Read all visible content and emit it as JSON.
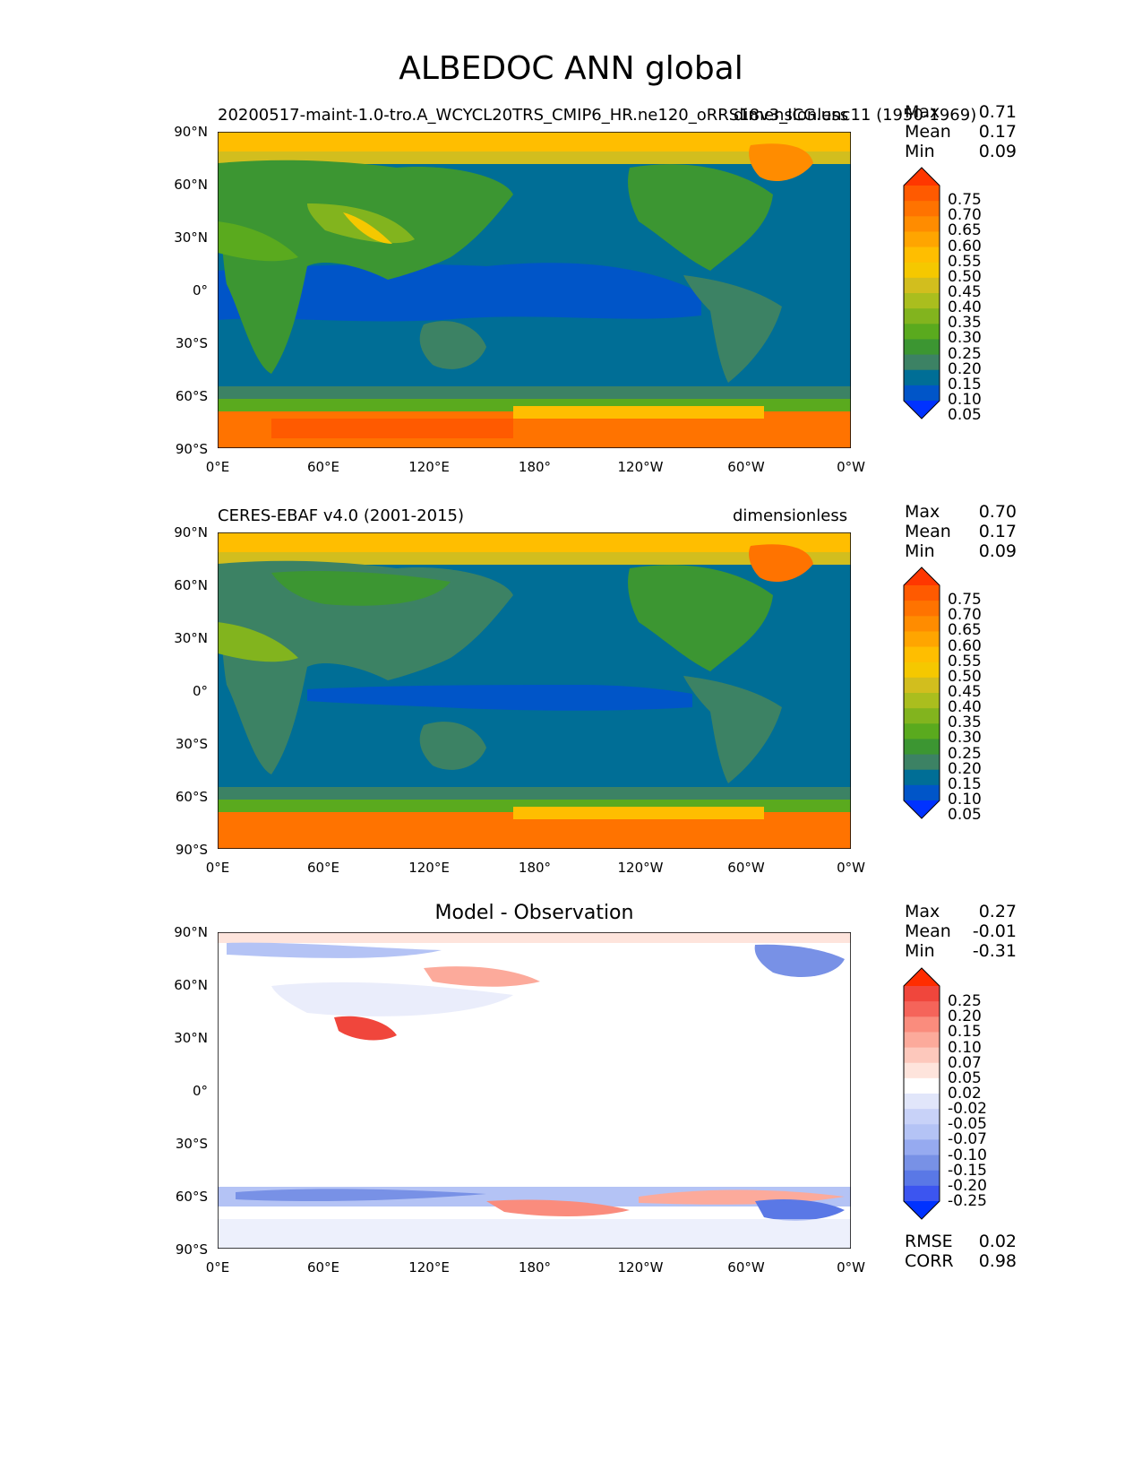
{
  "title": "ALBEDOC ANN global",
  "panels": [
    {
      "id": "model",
      "left_title": "20200517-maint-1.0-tro.A_WCYCL20TRS_CMIP6_HR.ne120_oRRS18v3_ICG.unc11 (1950-1969)",
      "right_title": "dimensionless",
      "stats": {
        "max_label": "Max",
        "max": "0.71",
        "mean_label": "Mean",
        "mean": "0.17",
        "min_label": "Min",
        "min": "0.09"
      }
    },
    {
      "id": "obs",
      "left_title": "CERES-EBAF v4.0 (2001-2015)",
      "right_title": "dimensionless",
      "stats": {
        "max_label": "Max",
        "max": "0.70",
        "mean_label": "Mean",
        "mean": "0.17",
        "min_label": "Min",
        "min": "0.09"
      }
    },
    {
      "id": "diff",
      "center_title": "Model - Observation",
      "stats": {
        "max_label": "Max",
        "max": "0.27",
        "mean_label": "Mean",
        "mean": "-0.01",
        "min_label": "Min",
        "min": "-0.31"
      },
      "metrics": {
        "rmse_label": "RMSE",
        "rmse": "0.02",
        "corr_label": "CORR",
        "corr": "0.98"
      }
    }
  ],
  "lat_labels": [
    "90°N",
    "60°N",
    "30°N",
    "0°",
    "30°S",
    "60°S",
    "90°S"
  ],
  "lon_labels": [
    "0°E",
    "60°E",
    "120°E",
    "180°",
    "120°W",
    "60°W",
    "0°W"
  ],
  "colorbar_main": {
    "labels": [
      "0.75",
      "0.70",
      "0.65",
      "0.60",
      "0.55",
      "0.50",
      "0.45",
      "0.40",
      "0.35",
      "0.30",
      "0.25",
      "0.20",
      "0.15",
      "0.10",
      "0.05"
    ],
    "colors": [
      "#ff3700",
      "#ff5a00",
      "#ff7300",
      "#ff8c00",
      "#ffa500",
      "#ffbe00",
      "#f5c800",
      "#d2be1e",
      "#aabe1e",
      "#82b41e",
      "#5aaa1e",
      "#3c9632",
      "#3c8264",
      "#006e96",
      "#0055c8",
      "#0032ff"
    ]
  },
  "colorbar_diff": {
    "labels": [
      "0.25",
      "0.20",
      "0.15",
      "0.10",
      "0.07",
      "0.05",
      "0.02",
      "-0.02",
      "-0.05",
      "-0.07",
      "-0.10",
      "-0.15",
      "-0.20",
      "-0.25"
    ],
    "colors": [
      "#ff2d00",
      "#f0463c",
      "#f5645a",
      "#fa8c7d",
      "#fcaa9b",
      "#fdc8bc",
      "#fee4dc",
      "#ffffff",
      "#e1e6fa",
      "#c8d2f8",
      "#b4c3f5",
      "#96aaf0",
      "#7891e6",
      "#5a78e6",
      "#3c55f0",
      "#0032ff"
    ]
  }
}
